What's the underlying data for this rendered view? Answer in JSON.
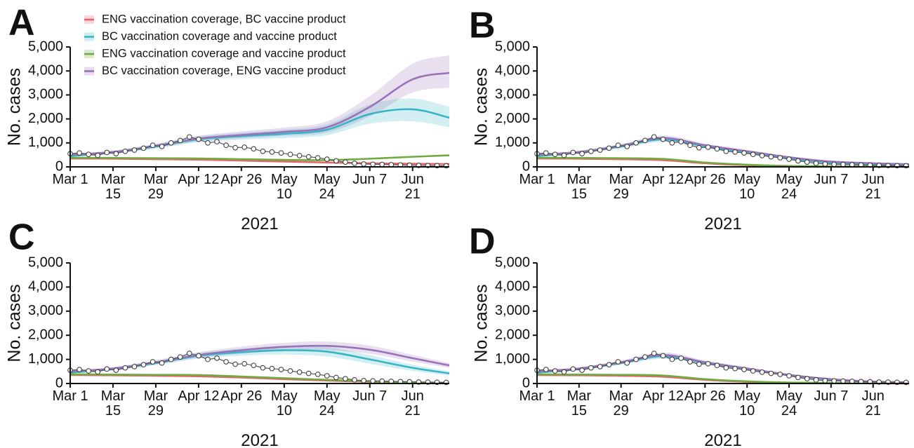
{
  "chart_data": [
    {
      "type": "line",
      "label": "A",
      "ylabel": "No. cases",
      "xlabel": "2021",
      "legend": "upper left",
      "xlim": [
        0,
        124
      ],
      "ylim": [
        0,
        5000
      ],
      "xticks": [
        {
          "value": 0,
          "label": "Mar 1"
        },
        {
          "value": 14,
          "label": "Mar 15"
        },
        {
          "value": 28,
          "label": "Mar 29"
        },
        {
          "value": 42,
          "label": "Apr 12"
        },
        {
          "value": 56,
          "label": "Apr 26"
        },
        {
          "value": 70,
          "label": "May 10"
        },
        {
          "value": 84,
          "label": "May 24"
        },
        {
          "value": 98,
          "label": "Jun 7"
        },
        {
          "value": 112,
          "label": "Jun 21"
        }
      ],
      "yticks": [
        0,
        {
          "value": 1000,
          "label": "1,000"
        },
        {
          "value": 2000,
          "label": "2,000"
        },
        {
          "value": 3000,
          "label": "3,000"
        },
        {
          "value": 4000,
          "label": "4,000"
        },
        {
          "value": 5000,
          "label": "5,000"
        }
      ],
      "x": [
        0,
        14,
        28,
        42,
        56,
        70,
        84,
        98,
        112,
        124
      ],
      "series": [
        {
          "name": "ENG vaccination coverage, BC vaccine product",
          "color": "#e8646c",
          "values": [
            350,
            340,
            320,
            300,
            260,
            220,
            180,
            150,
            130,
            120
          ]
        },
        {
          "name": "BC vaccination coverage and vaccine product",
          "color": "#36b5c6",
          "values": [
            450,
            600,
            850,
            1150,
            1280,
            1380,
            1550,
            2200,
            2400,
            2050
          ],
          "lower": [
            400,
            540,
            760,
            1030,
            1130,
            1200,
            1320,
            1800,
            1900,
            1650
          ],
          "upper": [
            500,
            660,
            940,
            1270,
            1430,
            1560,
            1780,
            2600,
            2850,
            2500
          ]
        },
        {
          "name": "ENG vaccination coverage and vaccine product",
          "color": "#6fab3f",
          "values": [
            380,
            370,
            360,
            350,
            320,
            290,
            280,
            340,
            420,
            480
          ]
        },
        {
          "name": "BC vaccination coverage, ENG vaccine product",
          "color": "#9a72b8",
          "values": [
            500,
            620,
            880,
            1180,
            1330,
            1460,
            1650,
            2500,
            3650,
            3920
          ],
          "lower": [
            450,
            560,
            790,
            1060,
            1180,
            1290,
            1430,
            2100,
            3100,
            3300
          ],
          "upper": [
            550,
            680,
            970,
            1300,
            1480,
            1640,
            1900,
            2950,
            4300,
            4650
          ]
        }
      ],
      "observed": {
        "x": [
          0,
          3,
          6,
          9,
          12,
          15,
          18,
          21,
          24,
          27,
          30,
          33,
          36,
          39,
          42,
          45,
          48,
          51,
          54,
          57,
          60,
          63,
          66,
          69,
          72,
          75,
          78,
          81,
          84,
          87,
          90,
          93,
          96,
          99,
          102,
          105,
          108,
          111,
          114,
          117,
          120,
          123
        ],
        "values": [
          550,
          580,
          520,
          480,
          600,
          550,
          650,
          700,
          780,
          900,
          850,
          1000,
          1100,
          1250,
          1150,
          1000,
          1050,
          900,
          800,
          820,
          750,
          650,
          620,
          580,
          520,
          470,
          420,
          380,
          320,
          250,
          200,
          150,
          120,
          110,
          100,
          90,
          80,
          70,
          60,
          55,
          50,
          45
        ]
      }
    },
    {
      "type": "line",
      "label": "B",
      "ylabel": "No. cases",
      "xlabel": "2021",
      "xlim": [
        0,
        124
      ],
      "ylim": [
        0,
        5000
      ],
      "xticks": [
        {
          "value": 0,
          "label": "Mar 1"
        },
        {
          "value": 14,
          "label": "Mar 15"
        },
        {
          "value": 28,
          "label": "Mar 29"
        },
        {
          "value": 42,
          "label": "Apr 12"
        },
        {
          "value": 56,
          "label": "Apr 26"
        },
        {
          "value": 70,
          "label": "May 10"
        },
        {
          "value": 84,
          "label": "May 24"
        },
        {
          "value": 98,
          "label": "Jun 7"
        },
        {
          "value": 112,
          "label": "Jun 21"
        }
      ],
      "yticks": [
        0,
        {
          "value": 1000,
          "label": "1,000"
        },
        {
          "value": 2000,
          "label": "2,000"
        },
        {
          "value": 3000,
          "label": "3,000"
        },
        {
          "value": 4000,
          "label": "4,000"
        },
        {
          "value": 5000,
          "label": "5,000"
        }
      ],
      "x": [
        0,
        14,
        28,
        42,
        56,
        70,
        84,
        98,
        112,
        124
      ],
      "series": [
        {
          "color": "#e8646c",
          "values": [
            350,
            340,
            320,
            280,
            150,
            70,
            30,
            15,
            8,
            5
          ]
        },
        {
          "color": "#36b5c6",
          "values": [
            450,
            600,
            850,
            1150,
            850,
            600,
            350,
            170,
            100,
            70
          ],
          "lower": [
            400,
            540,
            770,
            1040,
            770,
            540,
            310,
            150,
            85,
            60
          ],
          "upper": [
            500,
            660,
            930,
            1260,
            930,
            660,
            390,
            190,
            115,
            80
          ]
        },
        {
          "color": "#6fab3f",
          "values": [
            380,
            370,
            360,
            330,
            180,
            90,
            40,
            20,
            10,
            6
          ]
        },
        {
          "color": "#9a72b8",
          "values": [
            500,
            620,
            880,
            1200,
            900,
            650,
            400,
            220,
            150,
            110
          ],
          "lower": [
            450,
            560,
            800,
            1090,
            820,
            590,
            360,
            195,
            130,
            95
          ],
          "upper": [
            550,
            680,
            960,
            1310,
            980,
            710,
            440,
            245,
            170,
            125
          ]
        }
      ],
      "observed": {
        "x": [
          0,
          3,
          6,
          9,
          12,
          15,
          18,
          21,
          24,
          27,
          30,
          33,
          36,
          39,
          42,
          45,
          48,
          51,
          54,
          57,
          60,
          63,
          66,
          69,
          72,
          75,
          78,
          81,
          84,
          87,
          90,
          93,
          96,
          99,
          102,
          105,
          108,
          111,
          114,
          117,
          120,
          123
        ],
        "values": [
          550,
          580,
          520,
          480,
          600,
          550,
          650,
          700,
          780,
          900,
          850,
          1000,
          1100,
          1250,
          1150,
          1000,
          1050,
          900,
          800,
          820,
          750,
          650,
          620,
          580,
          520,
          470,
          420,
          380,
          320,
          250,
          200,
          150,
          120,
          110,
          100,
          90,
          80,
          70,
          60,
          55,
          50,
          45
        ]
      }
    },
    {
      "type": "line",
      "label": "C",
      "ylabel": "No. cases",
      "xlabel": "2021",
      "xlim": [
        0,
        124
      ],
      "ylim": [
        0,
        5000
      ],
      "xticks": [
        {
          "value": 0,
          "label": "Mar 1"
        },
        {
          "value": 14,
          "label": "Mar 15"
        },
        {
          "value": 28,
          "label": "Mar 29"
        },
        {
          "value": 42,
          "label": "Apr 12"
        },
        {
          "value": 56,
          "label": "Apr 26"
        },
        {
          "value": 70,
          "label": "May 10"
        },
        {
          "value": 84,
          "label": "May 24"
        },
        {
          "value": 98,
          "label": "Jun 7"
        },
        {
          "value": 112,
          "label": "Jun 21"
        }
      ],
      "yticks": [
        0,
        {
          "value": 1000,
          "label": "1,000"
        },
        {
          "value": 2000,
          "label": "2,000"
        },
        {
          "value": 3000,
          "label": "3,000"
        },
        {
          "value": 4000,
          "label": "4,000"
        },
        {
          "value": 5000,
          "label": "5,000"
        }
      ],
      "x": [
        0,
        14,
        28,
        42,
        56,
        70,
        84,
        98,
        112,
        124
      ],
      "series": [
        {
          "color": "#e8646c",
          "values": [
            350,
            340,
            320,
            300,
            250,
            180,
            120,
            70,
            40,
            25
          ]
        },
        {
          "color": "#36b5c6",
          "values": [
            450,
            600,
            850,
            1150,
            1300,
            1380,
            1320,
            1000,
            650,
            420
          ],
          "lower": [
            400,
            540,
            760,
            1030,
            1150,
            1200,
            1120,
            820,
            520,
            330
          ],
          "upper": [
            500,
            660,
            940,
            1270,
            1450,
            1560,
            1520,
            1180,
            780,
            510
          ]
        },
        {
          "color": "#6fab3f",
          "values": [
            380,
            370,
            360,
            350,
            290,
            220,
            150,
            90,
            50,
            30
          ]
        },
        {
          "color": "#9a72b8",
          "values": [
            500,
            620,
            880,
            1180,
            1380,
            1520,
            1560,
            1400,
            1050,
            750
          ],
          "lower": [
            450,
            560,
            790,
            1060,
            1230,
            1350,
            1380,
            1230,
            910,
            650
          ],
          "upper": [
            550,
            680,
            970,
            1300,
            1530,
            1690,
            1740,
            1570,
            1190,
            850
          ]
        }
      ],
      "observed": {
        "x": [
          0,
          3,
          6,
          9,
          12,
          15,
          18,
          21,
          24,
          27,
          30,
          33,
          36,
          39,
          42,
          45,
          48,
          51,
          54,
          57,
          60,
          63,
          66,
          69,
          72,
          75,
          78,
          81,
          84,
          87,
          90,
          93,
          96,
          99,
          102,
          105,
          108,
          111,
          114,
          117,
          120,
          123
        ],
        "values": [
          550,
          580,
          520,
          480,
          600,
          550,
          650,
          700,
          780,
          900,
          850,
          1000,
          1100,
          1250,
          1150,
          1000,
          1050,
          900,
          800,
          820,
          750,
          650,
          620,
          580,
          520,
          470,
          420,
          380,
          320,
          250,
          200,
          150,
          120,
          110,
          100,
          90,
          80,
          70,
          60,
          55,
          50,
          45
        ]
      }
    },
    {
      "type": "line",
      "label": "D",
      "ylabel": "No. cases",
      "xlabel": "2021",
      "xlim": [
        0,
        124
      ],
      "ylim": [
        0,
        5000
      ],
      "xticks": [
        {
          "value": 0,
          "label": "Mar 1"
        },
        {
          "value": 14,
          "label": "Mar 15"
        },
        {
          "value": 28,
          "label": "Mar 29"
        },
        {
          "value": 42,
          "label": "Apr 12"
        },
        {
          "value": 56,
          "label": "Apr 26"
        },
        {
          "value": 70,
          "label": "May 10"
        },
        {
          "value": 84,
          "label": "May 24"
        },
        {
          "value": 98,
          "label": "Jun 7"
        },
        {
          "value": 112,
          "label": "Jun 21"
        }
      ],
      "yticks": [
        0,
        {
          "value": 1000,
          "label": "1,000"
        },
        {
          "value": 2000,
          "label": "2,000"
        },
        {
          "value": 3000,
          "label": "3,000"
        },
        {
          "value": 4000,
          "label": "4,000"
        },
        {
          "value": 5000,
          "label": "5,000"
        }
      ],
      "x": [
        0,
        14,
        28,
        42,
        56,
        70,
        84,
        98,
        112,
        124
      ],
      "series": [
        {
          "color": "#e8646c",
          "values": [
            350,
            340,
            320,
            280,
            150,
            70,
            30,
            15,
            8,
            5
          ]
        },
        {
          "color": "#36b5c6",
          "values": [
            450,
            600,
            850,
            1130,
            850,
            600,
            350,
            160,
            70,
            40
          ],
          "lower": [
            400,
            540,
            770,
            1020,
            770,
            540,
            310,
            140,
            60,
            35
          ],
          "upper": [
            500,
            660,
            930,
            1240,
            930,
            660,
            390,
            180,
            80,
            45
          ]
        },
        {
          "color": "#6fab3f",
          "values": [
            380,
            370,
            360,
            330,
            180,
            90,
            40,
            20,
            10,
            6
          ]
        },
        {
          "color": "#9a72b8",
          "values": [
            500,
            620,
            880,
            1180,
            880,
            620,
            360,
            180,
            80,
            50
          ],
          "lower": [
            450,
            560,
            800,
            1070,
            800,
            560,
            325,
            160,
            70,
            45
          ],
          "upper": [
            550,
            680,
            960,
            1290,
            960,
            680,
            395,
            200,
            90,
            55
          ]
        }
      ],
      "observed": {
        "x": [
          0,
          3,
          6,
          9,
          12,
          15,
          18,
          21,
          24,
          27,
          30,
          33,
          36,
          39,
          42,
          45,
          48,
          51,
          54,
          57,
          60,
          63,
          66,
          69,
          72,
          75,
          78,
          81,
          84,
          87,
          90,
          93,
          96,
          99,
          102,
          105,
          108,
          111,
          114,
          117,
          120,
          123
        ],
        "values": [
          550,
          580,
          520,
          480,
          600,
          550,
          650,
          700,
          780,
          900,
          850,
          1000,
          1100,
          1250,
          1150,
          1000,
          1050,
          900,
          800,
          820,
          750,
          650,
          620,
          580,
          520,
          470,
          420,
          380,
          320,
          250,
          200,
          150,
          120,
          110,
          100,
          90,
          80,
          70,
          60,
          55,
          50,
          45
        ]
      }
    }
  ]
}
